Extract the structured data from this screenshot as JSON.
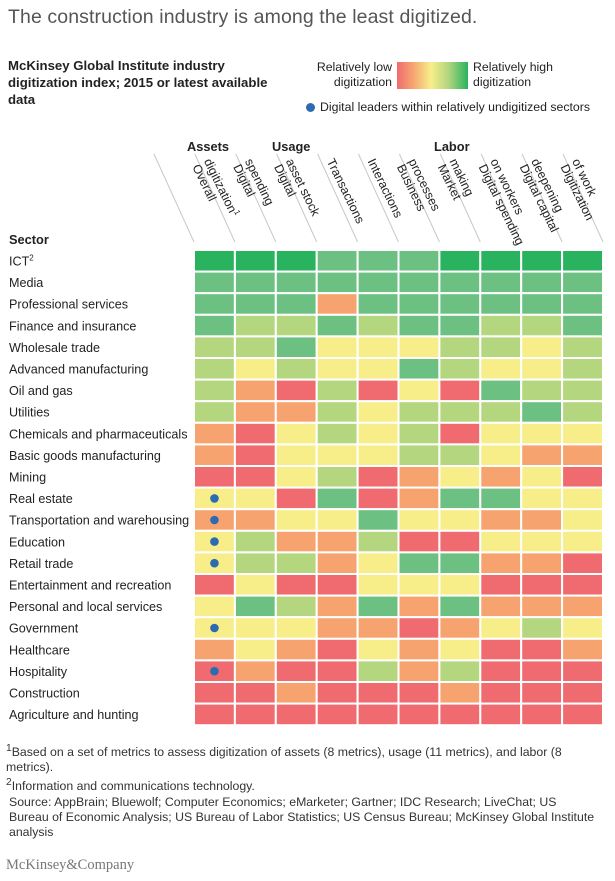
{
  "title": "The construction industry is among the least digitized.",
  "subtitle": "McKinsey Global Institute industry digitization index; 2015 or latest available data",
  "legend": {
    "low_label": "Relatively low digitization",
    "high_label": "Relatively high digitization",
    "dot_label": "Digital leaders within relatively undigitized sectors",
    "colors": {
      "1": "#ef6b6f",
      "2": "#f6a370",
      "3": "#f7ee8a",
      "4": "#b4d67f",
      "5": "#6cc082",
      "6": "#29b35e"
    },
    "dot_color": "#2b6cb0"
  },
  "footnotes": [
    "1Based on a set of metrics to assess digitization of assets (8 metrics), usage (11 metrics), and labor (8 metrics).",
    "2Information and communications technology."
  ],
  "source": "Source: AppBrain; Bluewolf; Computer Economics; eMarketer; Gartner; IDC Research; LiveChat; US Bureau of Economic Analysis; US Bureau of Labor Statistics; US Census Bureau; McKinsey Global Institute analysis",
  "brand": "McKinsey&Company",
  "chart_data": {
    "type": "heatmap",
    "title": "McKinsey Global Institute industry digitization index; 2015 or latest available data",
    "value_scale": "1 = relatively low digitization ... 6 = relatively high digitization",
    "row_header": "Sector",
    "column_groups": [
      {
        "name": "Assets",
        "columns": [
          "Digital spending",
          "Digital asset stock"
        ]
      },
      {
        "name": "Usage",
        "columns": [
          "Transactions",
          "Interactions",
          "Business processes"
        ]
      },
      {
        "name": "Labor",
        "columns": [
          "Market making",
          "Digital spending on workers",
          "Digital capital deepening",
          "Digitization of work"
        ]
      }
    ],
    "columns": [
      {
        "label": "Overall digitization",
        "sup": "1"
      },
      {
        "label": "Digital spending",
        "sup": ""
      },
      {
        "label": "Digital asset stock",
        "sup": ""
      },
      {
        "label": "Transactions",
        "sup": ""
      },
      {
        "label": "Interactions",
        "sup": ""
      },
      {
        "label": "Business processes",
        "sup": ""
      },
      {
        "label": "Market making",
        "sup": ""
      },
      {
        "label": "Digital spending on workers",
        "sup": ""
      },
      {
        "label": "Digital capital deepening",
        "sup": ""
      },
      {
        "label": "Digitization of work",
        "sup": ""
      }
    ],
    "rows": [
      {
        "sector": "ICT",
        "sup": "2",
        "leader_dot": false,
        "values": [
          6,
          6,
          6,
          5,
          5,
          5,
          6,
          6,
          6,
          6
        ]
      },
      {
        "sector": "Media",
        "sup": "",
        "leader_dot": false,
        "values": [
          5,
          5,
          5,
          5,
          5,
          5,
          5,
          5,
          5,
          5
        ]
      },
      {
        "sector": "Professional services",
        "sup": "",
        "leader_dot": false,
        "values": [
          5,
          5,
          5,
          2,
          5,
          5,
          5,
          5,
          5,
          5
        ]
      },
      {
        "sector": "Finance and insurance",
        "sup": "",
        "leader_dot": false,
        "values": [
          5,
          4,
          4,
          5,
          4,
          5,
          5,
          4,
          4,
          5
        ]
      },
      {
        "sector": "Wholesale trade",
        "sup": "",
        "leader_dot": false,
        "values": [
          4,
          4,
          5,
          3,
          3,
          3,
          4,
          4,
          3,
          4
        ]
      },
      {
        "sector": "Advanced manufacturing",
        "sup": "",
        "leader_dot": false,
        "values": [
          4,
          3,
          4,
          3,
          3,
          5,
          4,
          3,
          3,
          4
        ]
      },
      {
        "sector": "Oil and gas",
        "sup": "",
        "leader_dot": false,
        "values": [
          4,
          2,
          1,
          4,
          1,
          3,
          1,
          5,
          4,
          4
        ]
      },
      {
        "sector": "Utilities",
        "sup": "",
        "leader_dot": false,
        "values": [
          4,
          2,
          2,
          4,
          3,
          4,
          4,
          4,
          5,
          4
        ]
      },
      {
        "sector": "Chemicals and pharmaceuticals",
        "sup": "",
        "leader_dot": false,
        "values": [
          2,
          1,
          3,
          4,
          3,
          4,
          1,
          3,
          3,
          3
        ]
      },
      {
        "sector": "Basic goods manufacturing",
        "sup": "",
        "leader_dot": false,
        "values": [
          2,
          1,
          3,
          3,
          3,
          4,
          4,
          3,
          2,
          2
        ]
      },
      {
        "sector": "Mining",
        "sup": "",
        "leader_dot": false,
        "values": [
          1,
          1,
          3,
          4,
          1,
          2,
          3,
          2,
          3,
          1
        ]
      },
      {
        "sector": "Real estate",
        "sup": "",
        "leader_dot": true,
        "values": [
          3,
          3,
          1,
          5,
          1,
          2,
          5,
          5,
          3,
          3
        ]
      },
      {
        "sector": "Transportation and warehousing",
        "sup": "",
        "leader_dot": true,
        "values": [
          2,
          2,
          3,
          3,
          5,
          3,
          3,
          2,
          2,
          3
        ]
      },
      {
        "sector": "Education",
        "sup": "",
        "leader_dot": true,
        "values": [
          3,
          4,
          2,
          2,
          4,
          1,
          1,
          3,
          3,
          3
        ]
      },
      {
        "sector": "Retail trade",
        "sup": "",
        "leader_dot": true,
        "values": [
          3,
          4,
          4,
          2,
          3,
          5,
          5,
          2,
          2,
          1
        ]
      },
      {
        "sector": "Entertainment and recreation",
        "sup": "",
        "leader_dot": false,
        "values": [
          1,
          3,
          1,
          1,
          3,
          3,
          3,
          1,
          1,
          1
        ]
      },
      {
        "sector": "Personal and local services",
        "sup": "",
        "leader_dot": false,
        "values": [
          3,
          5,
          4,
          2,
          5,
          2,
          5,
          2,
          2,
          2
        ]
      },
      {
        "sector": "Government",
        "sup": "",
        "leader_dot": true,
        "values": [
          3,
          3,
          3,
          2,
          2,
          1,
          2,
          3,
          4,
          3
        ]
      },
      {
        "sector": "Healthcare",
        "sup": "",
        "leader_dot": false,
        "values": [
          2,
          3,
          2,
          1,
          3,
          2,
          3,
          1,
          1,
          2
        ]
      },
      {
        "sector": "Hospitality",
        "sup": "",
        "leader_dot": true,
        "values": [
          1,
          2,
          1,
          1,
          4,
          2,
          4,
          1,
          1,
          1
        ]
      },
      {
        "sector": "Construction",
        "sup": "",
        "leader_dot": false,
        "values": [
          1,
          1,
          2,
          1,
          1,
          1,
          2,
          1,
          1,
          1
        ]
      },
      {
        "sector": "Agriculture and hunting",
        "sup": "",
        "leader_dot": false,
        "values": [
          1,
          1,
          1,
          1,
          1,
          1,
          1,
          1,
          1,
          1
        ]
      }
    ]
  }
}
